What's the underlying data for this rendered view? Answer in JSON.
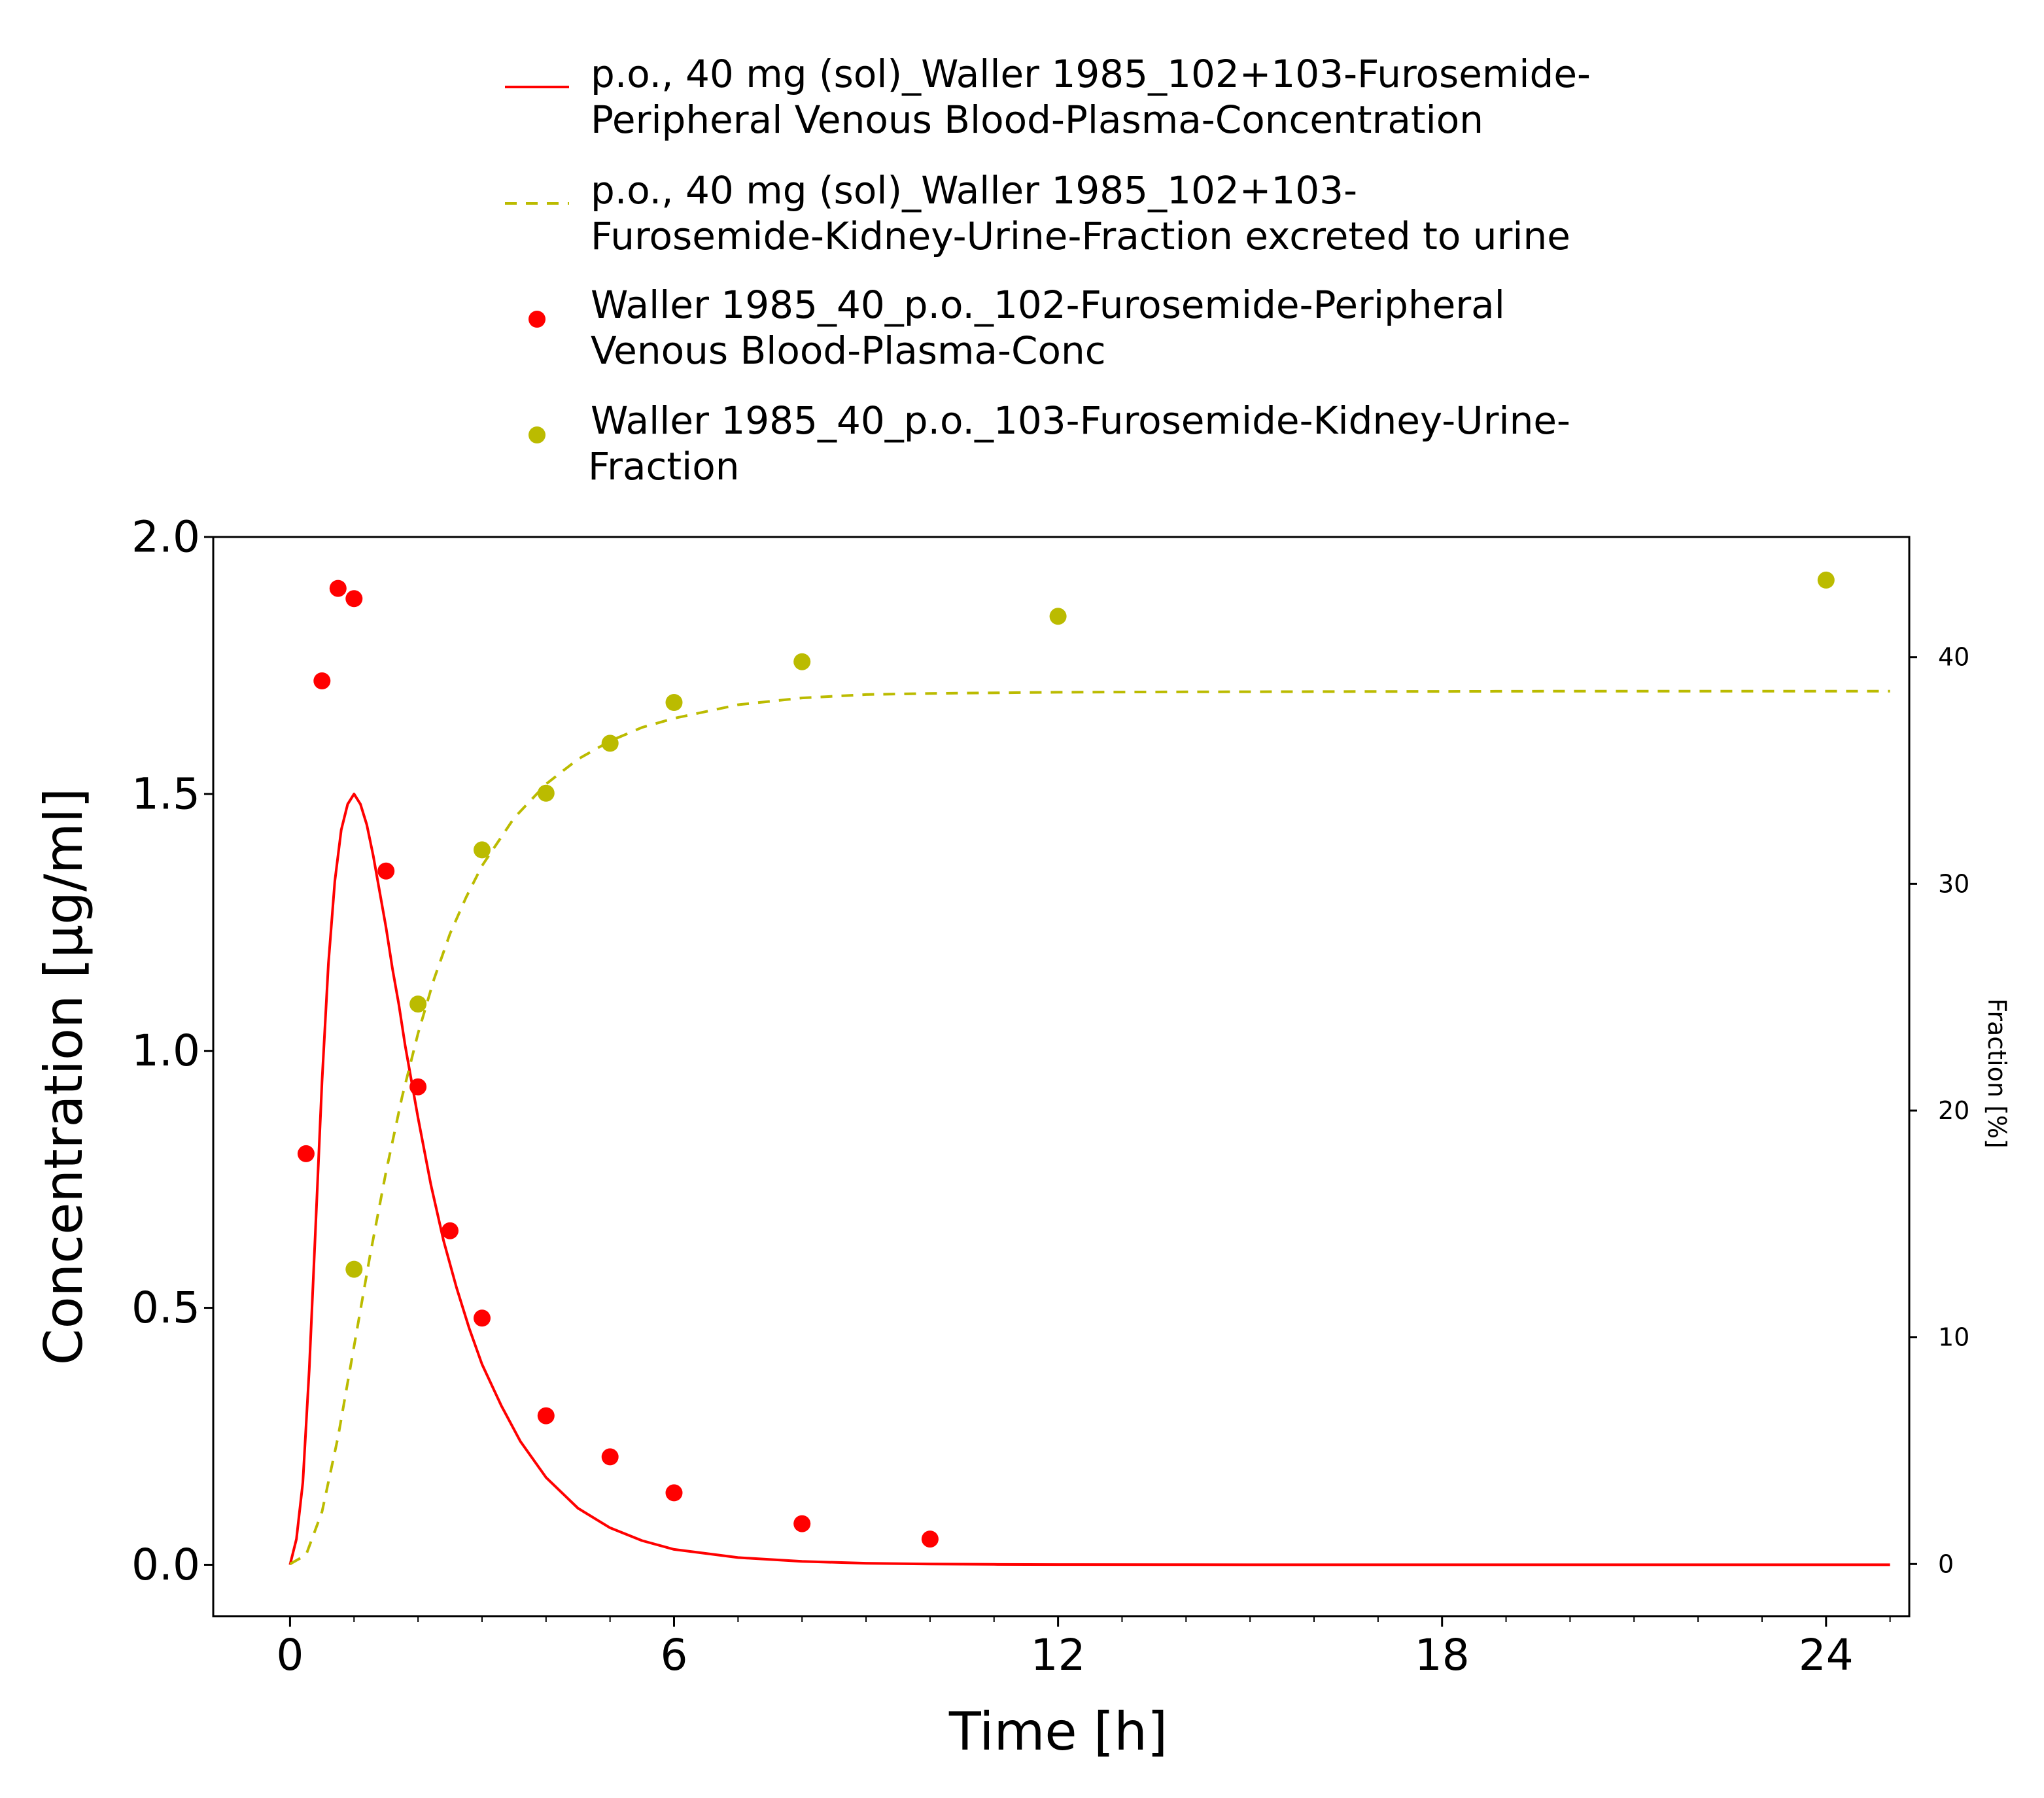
{
  "colors": {
    "sim_plasma": "#ff0000",
    "sim_urine": "#bbbb00",
    "obs_plasma": "#ff0000",
    "obs_urine": "#bbbb00",
    "axis": "#000000"
  },
  "legend": {
    "placement": "top",
    "entries": [
      {
        "key": "sim_plasma",
        "style": "solid-line",
        "lines": [
          "p.o., 40 mg (sol)_Waller 1985_102+103-Furosemide-",
          "Peripheral Venous Blood-Plasma-Concentration"
        ]
      },
      {
        "key": "sim_urine",
        "style": "dashed-line",
        "lines": [
          "p.o., 40 mg (sol)_Waller 1985_102+103-",
          "Furosemide-Kidney-Urine-Fraction excreted to urine"
        ]
      },
      {
        "key": "obs_plasma",
        "style": "marker",
        "lines": [
          "Waller 1985_40_p.o._102-Furosemide-Peripheral",
          "Venous Blood-Plasma-Conc"
        ]
      },
      {
        "key": "obs_urine",
        "style": "marker",
        "lines": [
          "Waller 1985_40_p.o._103-Furosemide-Kidney-Urine-",
          "Fraction"
        ]
      }
    ]
  },
  "chart_data": {
    "type": "line",
    "xlabel": "Time [h]",
    "ylabel": "Concentration [µg/ml]",
    "y2label": "Fraction [%]",
    "xlim": [
      -1.2,
      25.3
    ],
    "ylim": [
      -0.1,
      2.0
    ],
    "y2lim": [
      -2.3,
      45.3
    ],
    "xticks": [
      "0",
      "6",
      "12",
      "18",
      "24"
    ],
    "xtick_values": [
      0,
      6,
      12,
      18,
      24
    ],
    "xminor_values": [
      2,
      4,
      8,
      10,
      14,
      16,
      20,
      22,
      1,
      3,
      5,
      7,
      9,
      11,
      13,
      15,
      17,
      19,
      21,
      23,
      25
    ],
    "yticks": [
      "0.0",
      "0.5",
      "1.0",
      "1.5",
      "2.0"
    ],
    "ytick_values": [
      0.0,
      0.5,
      1.0,
      1.5,
      2.0
    ],
    "y2ticks": [
      "0",
      "10",
      "20",
      "30",
      "40"
    ],
    "y2tick_values": [
      0,
      10,
      20,
      30,
      40
    ],
    "grid": false,
    "series": [
      {
        "key": "sim_plasma",
        "kind": "line",
        "axis": "left",
        "x": [
          0,
          0.1,
          0.2,
          0.3,
          0.4,
          0.5,
          0.6,
          0.7,
          0.8,
          0.9,
          1.0,
          1.1,
          1.2,
          1.3,
          1.4,
          1.5,
          1.6,
          1.7,
          1.8,
          2.0,
          2.2,
          2.4,
          2.6,
          2.8,
          3.0,
          3.3,
          3.6,
          4.0,
          4.5,
          5.0,
          5.5,
          6.0,
          7.0,
          8.0,
          9.0,
          10.0,
          11.0,
          12.0,
          14.0,
          16.0,
          18.0,
          20.0,
          22.0,
          24.0,
          25.0
        ],
        "y": [
          0.0,
          0.05,
          0.16,
          0.38,
          0.66,
          0.94,
          1.17,
          1.33,
          1.43,
          1.48,
          1.5,
          1.48,
          1.44,
          1.38,
          1.31,
          1.24,
          1.16,
          1.09,
          1.01,
          0.87,
          0.74,
          0.63,
          0.54,
          0.46,
          0.39,
          0.31,
          0.24,
          0.17,
          0.11,
          0.072,
          0.047,
          0.03,
          0.014,
          0.0065,
          0.003,
          0.0015,
          0.0008,
          0.0004,
          0.0001,
          0.0,
          0.0,
          0.0,
          0.0,
          0.0,
          0.0
        ]
      },
      {
        "key": "sim_urine",
        "kind": "dashed-line",
        "axis": "right",
        "x": [
          0,
          0.25,
          0.5,
          0.75,
          1.0,
          1.25,
          1.5,
          1.75,
          2.0,
          2.25,
          2.5,
          2.75,
          3.0,
          3.5,
          4.0,
          4.5,
          5.0,
          5.5,
          6.0,
          7.0,
          8.0,
          9.0,
          10.0,
          12.0,
          14.0,
          16.0,
          18.0,
          20.0,
          22.0,
          24.0,
          25.0
        ],
        "y": [
          0,
          0.4,
          2.3,
          5.6,
          9.6,
          13.6,
          17.3,
          20.6,
          23.4,
          25.8,
          27.8,
          29.4,
          30.8,
          32.9,
          34.4,
          35.5,
          36.3,
          36.9,
          37.3,
          37.9,
          38.2,
          38.35,
          38.4,
          38.45,
          38.47,
          38.48,
          38.49,
          38.5,
          38.5,
          38.5,
          38.5
        ]
      },
      {
        "key": "obs_plasma",
        "kind": "scatter",
        "axis": "left",
        "x": [
          0.25,
          0.5,
          0.75,
          1.0,
          1.5,
          2.0,
          2.5,
          3.0,
          4.0,
          5.0,
          6.0,
          8.0,
          10.0
        ],
        "y": [
          0.8,
          1.72,
          1.9,
          1.88,
          1.35,
          0.93,
          0.65,
          0.48,
          0.29,
          0.21,
          0.14,
          0.08,
          0.05
        ]
      },
      {
        "key": "obs_urine",
        "kind": "scatter",
        "axis": "right",
        "x": [
          1.0,
          2.0,
          3.0,
          4.0,
          5.0,
          6.0,
          8.0,
          12.0,
          24.0
        ],
        "y": [
          13.0,
          24.7,
          31.5,
          34.0,
          36.2,
          38.0,
          39.8,
          41.8,
          43.4
        ]
      }
    ]
  }
}
